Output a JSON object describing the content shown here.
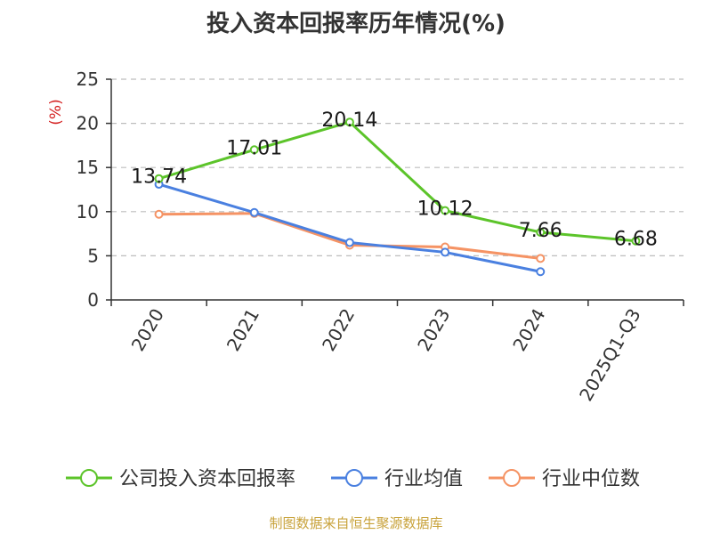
{
  "title": "投入资本回报率历年情况(%)",
  "source": "制图数据来自恒生聚源数据库",
  "colors": {
    "company": "#5cc42a",
    "industry_avg": "#4a80e0",
    "industry_median": "#f59364",
    "ylabel": "#d42020",
    "source": "#c8a23a"
  },
  "chart_data": {
    "type": "line",
    "title": "投入资本回报率历年情况(%)",
    "ylabel": "(%)",
    "xlabel": "",
    "categories": [
      "2020",
      "2021",
      "2022",
      "2023",
      "2024",
      "2025Q1-Q3"
    ],
    "ylim": [
      0,
      25
    ],
    "yticks": [
      0,
      5,
      10,
      15,
      20,
      25
    ],
    "grid": true,
    "legend_position": "bottom",
    "series": [
      {
        "name": "公司投入资本回报率",
        "color": "#5cc42a",
        "values": [
          13.74,
          17.01,
          20.14,
          10.12,
          7.66,
          6.68
        ],
        "labels": [
          "13.74",
          "17.01",
          "20.14",
          "10.12",
          "7.66",
          "6.68"
        ]
      },
      {
        "name": "行业均值",
        "color": "#4a80e0",
        "values": [
          13.1,
          9.9,
          6.5,
          5.4,
          3.2,
          null
        ]
      },
      {
        "name": "行业中位数",
        "color": "#f59364",
        "values": [
          9.7,
          9.8,
          6.2,
          6.0,
          4.7,
          null
        ]
      }
    ]
  }
}
